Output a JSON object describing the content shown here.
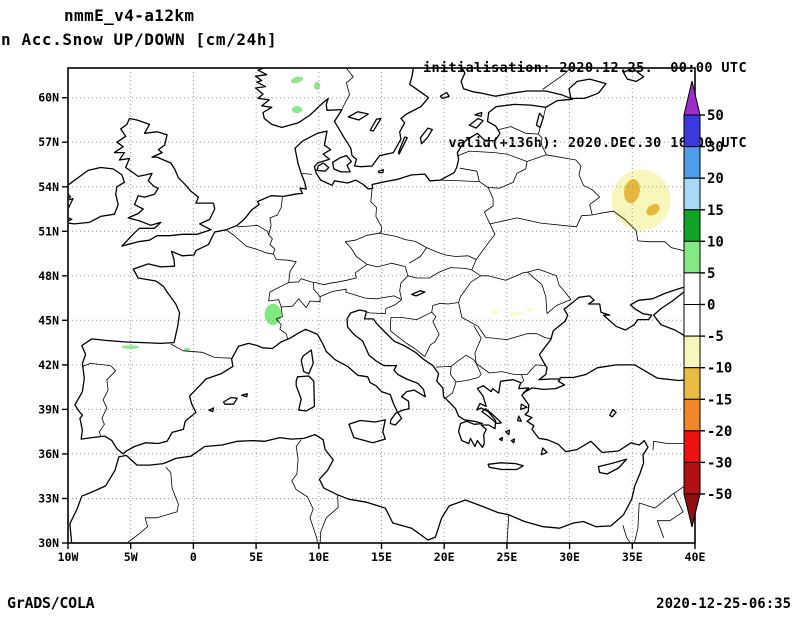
{
  "header": {
    "model_title": "nmmE_v4-a12km",
    "variable_title": "n Acc.Snow UP/DOWN [cm/24h]",
    "init_line": "initialisation: 2020.12.25.  00:00 UTC",
    "valid_line": "valid(+136h): 2020.DEC.30 16:00 UTC"
  },
  "footer": {
    "brand": "GrADS/COLA",
    "timestamp": "2020-12-25-06:35"
  },
  "chart_data": {
    "type": "map",
    "projection": "latlon",
    "title": "nmmE_v4-a12km",
    "variable": "Acc.Snow UP/DOWN",
    "units": "cm/24h",
    "domain": {
      "lon_min": -10,
      "lon_max": 40,
      "lat_min": 30,
      "lat_max": 62
    },
    "grid": {
      "lat_step": 3,
      "lon_step": 5,
      "style": "dotted",
      "color": "#999999"
    },
    "lat_ticks": [
      {
        "label": "30N",
        "value": 30
      },
      {
        "label": "33N",
        "value": 33
      },
      {
        "label": "36N",
        "value": 36
      },
      {
        "label": "39N",
        "value": 39
      },
      {
        "label": "42N",
        "value": 42
      },
      {
        "label": "45N",
        "value": 45
      },
      {
        "label": "48N",
        "value": 48
      },
      {
        "label": "51N",
        "value": 51
      },
      {
        "label": "54N",
        "value": 54
      },
      {
        "label": "57N",
        "value": 57
      },
      {
        "label": "60N",
        "value": 60
      }
    ],
    "lon_ticks": [
      {
        "label": "10W",
        "value": -10
      },
      {
        "label": "5W",
        "value": -5
      },
      {
        "label": "0",
        "value": 0
      },
      {
        "label": "5E",
        "value": 5
      },
      {
        "label": "10E",
        "value": 10
      },
      {
        "label": "15E",
        "value": 15
      },
      {
        "label": "20E",
        "value": 20
      },
      {
        "label": "25E",
        "value": 25
      },
      {
        "label": "30E",
        "value": 30
      },
      {
        "label": "35E",
        "value": 35
      },
      {
        "label": "40E",
        "value": 40
      }
    ],
    "colorbar": {
      "labels": [
        "50",
        "30",
        "20",
        "15",
        "10",
        "5",
        "0",
        "-5",
        "-10",
        "-15",
        "-20",
        "-30",
        "-50"
      ],
      "levels": [
        50,
        30,
        20,
        15,
        10,
        5,
        0,
        -5,
        -10,
        -15,
        -20,
        -30,
        -50
      ],
      "band_colors_top_to_bottom": [
        "#3939DD",
        "#4D9DE8",
        "#A9DAF5",
        "#12A226",
        "#84E884",
        "#FFFFFF",
        "#FFFFFF",
        "#F7F7BC",
        "#E8BC42",
        "#F0872B",
        "#EE1111",
        "#B11115"
      ],
      "over_color": "#9D2ECC",
      "under_color": "#8E1111"
    },
    "snow_patches": [
      {
        "name": "russia-band",
        "range_cm": "-5 to -10",
        "color": "#F7F7BC",
        "lon": 35.7,
        "lat": 53.1,
        "rx_deg": 2.35,
        "ry_deg": 2.05,
        "rot": 0
      },
      {
        "name": "russia-core",
        "range_cm": "-10 to -15",
        "color": "#E8B83C",
        "lon": 34.98,
        "lat": 53.7,
        "rx_deg": 0.62,
        "ry_deg": 0.82,
        "rot": 10
      },
      {
        "name": "russia-core-2",
        "range_cm": "-10 to -15",
        "color": "#E8B83C",
        "lon": 36.65,
        "lat": 52.45,
        "rx_deg": 0.58,
        "ry_deg": 0.33,
        "rot": -35
      },
      {
        "name": "alps-patch",
        "range_cm": "5 to 10",
        "color": "#7FE87F",
        "lon": 6.35,
        "lat": 45.4,
        "rx_deg": 0.66,
        "ry_deg": 0.72,
        "rot": 0
      },
      {
        "name": "norway-patch-1",
        "range_cm": "5 to 10",
        "color": "#8FE88F",
        "lon": 8.26,
        "lat": 61.2,
        "rx_deg": 0.5,
        "ry_deg": 0.2,
        "rot": -15
      },
      {
        "name": "norway-patch-2",
        "range_cm": "5 to 10",
        "color": "#8FE88F",
        "lon": 9.86,
        "lat": 60.8,
        "rx_deg": 0.25,
        "ry_deg": 0.28,
        "rot": 0
      },
      {
        "name": "norway-patch-3",
        "range_cm": "5 to 10",
        "color": "#8FE88F",
        "lon": 8.26,
        "lat": 59.2,
        "rx_deg": 0.42,
        "ry_deg": 0.24,
        "rot": 0
      },
      {
        "name": "spain-patch-1",
        "range_cm": "5 to 10",
        "color": "#8FE88F",
        "lon": -5.05,
        "lat": 43.2,
        "rx_deg": 0.7,
        "ry_deg": 0.12,
        "rot": 0
      },
      {
        "name": "spain-patch-2",
        "range_cm": "5 to 10",
        "color": "#8FE88F",
        "lon": -0.5,
        "lat": 43.05,
        "rx_deg": 0.25,
        "ry_deg": 0.1,
        "rot": 0
      },
      {
        "name": "romania-patch-1",
        "range_cm": "-5 to -10",
        "color": "#FAFAD0",
        "lon": 24.05,
        "lat": 45.55,
        "rx_deg": 0.33,
        "ry_deg": 0.15,
        "rot": 0
      },
      {
        "name": "romania-patch-2",
        "range_cm": "-5 to -10",
        "color": "#FAFAD0",
        "lon": 25.7,
        "lat": 45.45,
        "rx_deg": 0.5,
        "ry_deg": 0.15,
        "rot": 0
      },
      {
        "name": "romania-patch-3",
        "range_cm": "-5 to -10",
        "color": "#FAFAD0",
        "lon": 26.85,
        "lat": 45.7,
        "rx_deg": 0.28,
        "ry_deg": 0.13,
        "rot": 0
      }
    ]
  }
}
